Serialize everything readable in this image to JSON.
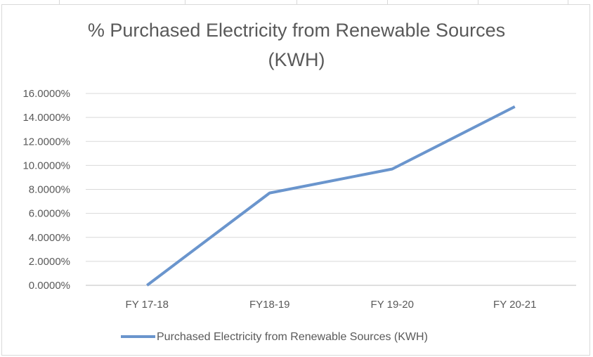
{
  "chart_data": {
    "type": "line",
    "title": "% Purchased Electricity from Renewable Sources\n(KWH)",
    "categories": [
      "FY 17-18",
      "FY18-19",
      "FY 19-20",
      "FY 20-21"
    ],
    "series": [
      {
        "name": "Purchased Electricity from Renewable Sources (KWH)",
        "values": [
          0.0,
          7.7,
          9.7,
          14.9
        ],
        "color": "#6a95cd"
      }
    ],
    "y_ticks": [
      "0.0000%",
      "2.0000%",
      "4.0000%",
      "6.0000%",
      "8.0000%",
      "10.0000%",
      "12.0000%",
      "14.0000%",
      "16.0000%"
    ],
    "ylim": [
      0,
      16
    ],
    "xlabel": "",
    "ylabel": "",
    "grid": true,
    "legend_position": "bottom"
  }
}
